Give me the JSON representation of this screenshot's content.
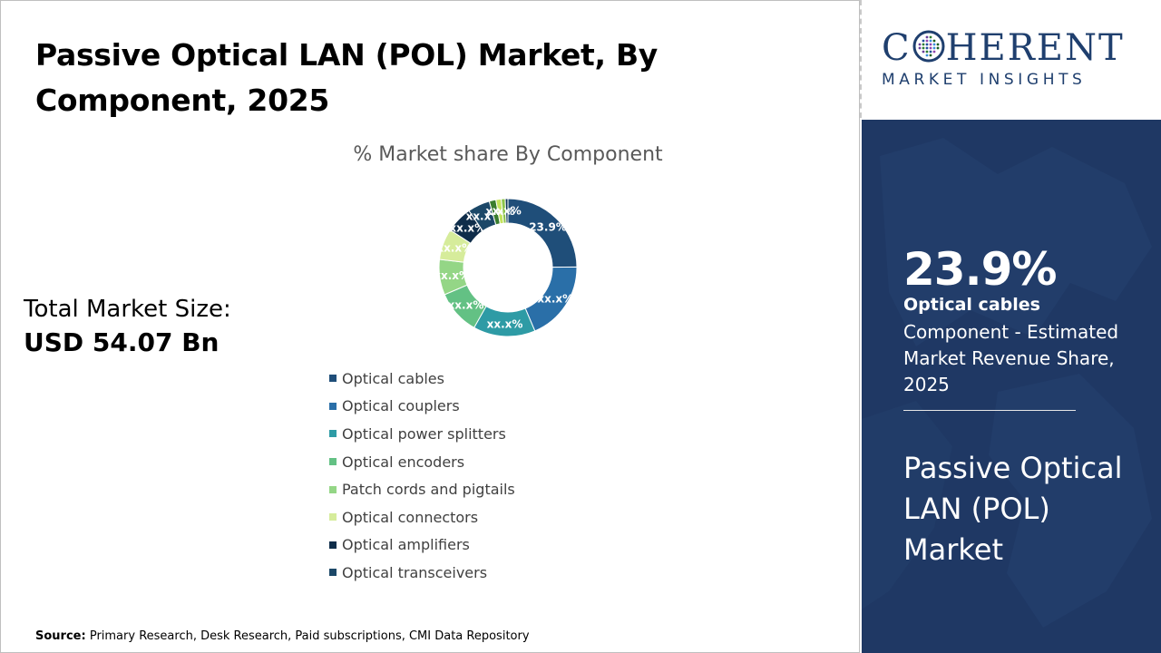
{
  "title": "Passive Optical LAN (POL) Market, By Component, 2025",
  "total_market": {
    "label": "Total Market Size:",
    "value": "USD 54.07 Bn"
  },
  "source": {
    "label": "Source:",
    "text": "Primary Research, Desk Research, Paid subscriptions, CMI Data Repository"
  },
  "brand": {
    "name_start": "C",
    "name_end": "HERENT",
    "tagline": "MARKET INSIGHTS",
    "color": "#1f3f6e"
  },
  "highlight": {
    "value": "23.9%",
    "segment": "Optical cables",
    "description": "Component - Estimated Market Revenue Share, 2025",
    "market": "Passive Optical LAN (POL) Market",
    "background": "#1f3864"
  },
  "chart_data": {
    "type": "pie",
    "variant": "donut",
    "title": "% Market share By Component",
    "categories": [
      "Optical cables",
      "Optical couplers",
      "Optical power splitters",
      "Optical encoders",
      "Patch cords and pigtails",
      "Optical connectors",
      "Optical amplifiers",
      "Optical transceivers"
    ],
    "values": [
      23.9,
      18,
      14,
      10,
      8,
      7,
      6,
      5
    ],
    "labels": [
      "23.9%",
      "xx.x%",
      "xx.x%",
      "xx.x%",
      "xx.x%",
      "xx.x%",
      "xx.x%",
      "xx.x%"
    ],
    "colors": [
      "#1f4e79",
      "#2a6fa8",
      "#2e9ba5",
      "#63c184",
      "#94d686",
      "#d6ec9b",
      "#0f2d4a",
      "#1c4868"
    ],
    "extra_slices": [
      {
        "value": 1.5,
        "color": "#3a7d2e",
        "label": ""
      },
      {
        "value": 1.2,
        "color": "#c4e35c",
        "label": "x.x%"
      },
      {
        "value": 0.9,
        "color": "#8bc34a",
        "label": ""
      },
      {
        "value": 0.6,
        "color": "#0e3457",
        "label": "x.x%"
      }
    ],
    "legend_position": "bottom"
  }
}
